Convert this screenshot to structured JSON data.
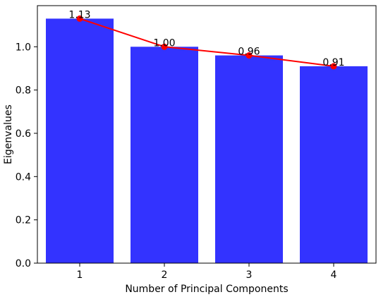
{
  "chart_data": {
    "type": "bar",
    "categories": [
      "1",
      "2",
      "3",
      "4"
    ],
    "values": [
      1.13,
      1.0,
      0.96,
      0.91
    ],
    "data_labels": [
      "1.13",
      "1.00",
      "0.96",
      "0.91"
    ],
    "overlay_line": {
      "values": [
        1.13,
        1.0,
        0.96,
        0.91
      ],
      "marker": "circle"
    },
    "xlabel": "Number of Principal Components",
    "ylabel": "Eigenvalues",
    "ylim": [
      0,
      1.19
    ],
    "yticks": [
      0.0,
      0.2,
      0.4,
      0.6,
      0.8,
      1.0
    ],
    "ytick_labels": [
      "0.0",
      "0.2",
      "0.4",
      "0.6",
      "0.8",
      "1.0"
    ],
    "grid": false,
    "colors": {
      "bar": "#3333ff",
      "line": "#ff0000",
      "axis": "#000000"
    }
  }
}
